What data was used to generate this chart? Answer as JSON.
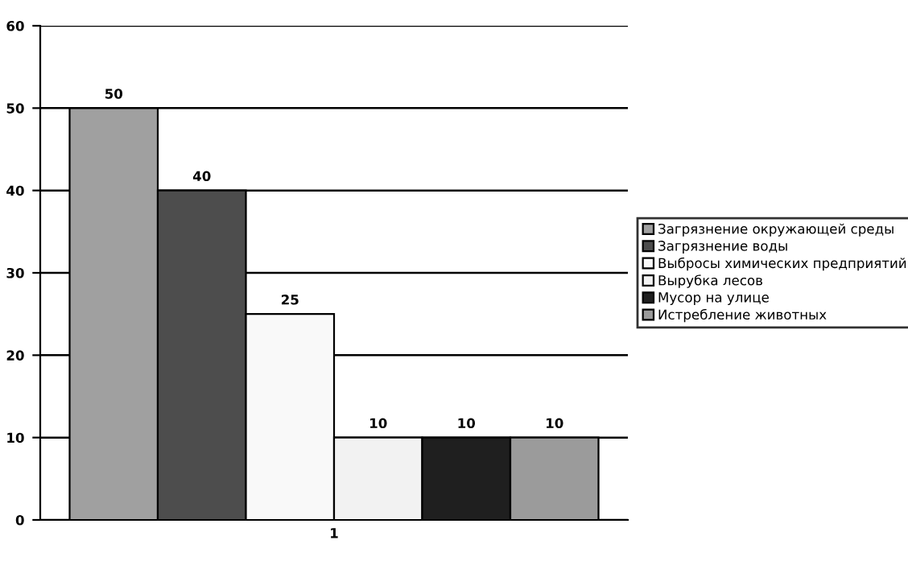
{
  "chart_data": {
    "type": "bar",
    "categories": [
      "1"
    ],
    "series": [
      {
        "name": "Загрязнение окружающей среды",
        "color": "#a0a0a0",
        "values": [
          50
        ]
      },
      {
        "name": "Загрязнение воды",
        "color": "#4d4d4d",
        "values": [
          40
        ]
      },
      {
        "name": "Выбросы химических предприятий",
        "color": "#f9f9f9",
        "values": [
          25
        ]
      },
      {
        "name": "Вырубка лесов",
        "color": "#f2f2f2",
        "values": [
          10
        ]
      },
      {
        "name": "Мусор на улице",
        "color": "#1f1f1f",
        "values": [
          10
        ]
      },
      {
        "name": "Истребление животных",
        "color": "#9b9b9b",
        "values": [
          10
        ]
      }
    ],
    "ylim": [
      0,
      60
    ],
    "yticks": [
      0,
      10,
      20,
      30,
      40,
      50,
      60
    ],
    "grid": "y",
    "legend": "right",
    "data_labels": true
  }
}
